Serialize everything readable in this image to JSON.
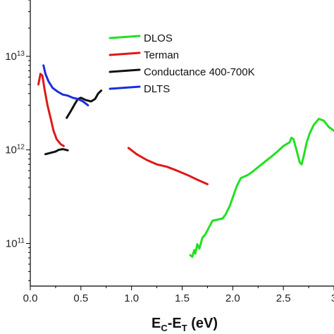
{
  "chart_data": {
    "type": "line",
    "title": "",
    "xlabel": "E_C-E_T (eV)",
    "xlabel_parts": {
      "e1": "E",
      "s1": "C",
      "mid": "-E",
      "s2": "T",
      "tail": " (eV)"
    },
    "ylabel": "",
    "xlim": [
      0,
      3.0
    ],
    "ylog": true,
    "ylim": [
      35000000000.0,
      40000000000000.0
    ],
    "x_ticks": [
      {
        "value": 0.0,
        "label": "0.0"
      },
      {
        "value": 0.5,
        "label": "0.5"
      },
      {
        "value": 1.0,
        "label": "1.0"
      },
      {
        "value": 1.5,
        "label": "1.5"
      },
      {
        "value": 2.0,
        "label": "2.0"
      },
      {
        "value": 2.5,
        "label": "2.5"
      },
      {
        "value": 3.0,
        "label": "3"
      }
    ],
    "y_ticks": [
      {
        "value": 10000000000000.0,
        "base": "10",
        "exp": "13"
      },
      {
        "value": 1000000000000.0,
        "base": "10",
        "exp": "12"
      },
      {
        "value": 100000000000.0,
        "base": "10",
        "exp": "11"
      }
    ],
    "legend_position": "top-center",
    "series": [
      {
        "name": "DLOS",
        "color": "#22e022",
        "segments": [
          [
            [
              1.58,
              75000000000.0
            ],
            [
              1.6,
              72000000000.0
            ],
            [
              1.62,
              85000000000.0
            ],
            [
              1.63,
              78000000000.0
            ],
            [
              1.65,
              98000000000.0
            ],
            [
              1.67,
              88000000000.0
            ],
            [
              1.7,
              115000000000.0
            ],
            [
              1.73,
              125000000000.0
            ],
            [
              1.76,
              145000000000.0
            ],
            [
              1.8,
              175000000000.0
            ],
            [
              1.85,
              180000000000.0
            ],
            [
              1.9,
              185000000000.0
            ],
            [
              1.93,
              205000000000.0
            ],
            [
              1.97,
              250000000000.0
            ],
            [
              2.0,
              310000000000.0
            ],
            [
              2.04,
              410000000000.0
            ],
            [
              2.08,
              500000000000.0
            ],
            [
              2.15,
              540000000000.0
            ],
            [
              2.2,
              590000000000.0
            ],
            [
              2.3,
              720000000000.0
            ],
            [
              2.4,
              880000000000.0
            ],
            [
              2.45,
              980000000000.0
            ],
            [
              2.5,
              1100000000000.0
            ],
            [
              2.53,
              1150000000000.0
            ],
            [
              2.56,
              1200000000000.0
            ],
            [
              2.58,
              1350000000000.0
            ],
            [
              2.6,
              1300000000000.0
            ],
            [
              2.63,
              1000000000000.0
            ],
            [
              2.66,
              740000000000.0
            ],
            [
              2.68,
              700000000000.0
            ],
            [
              2.7,
              850000000000.0
            ],
            [
              2.73,
              1200000000000.0
            ],
            [
              2.76,
              1500000000000.0
            ],
            [
              2.8,
              1850000000000.0
            ],
            [
              2.85,
              2150000000000.0
            ],
            [
              2.9,
              2050000000000.0
            ],
            [
              2.95,
              1750000000000.0
            ],
            [
              3.0,
              1600000000000.0
            ]
          ]
        ]
      },
      {
        "name": "Terman",
        "color": "#e01818",
        "segments": [
          [
            [
              0.08,
              5000000000000.0
            ],
            [
              0.1,
              6500000000000.0
            ],
            [
              0.12,
              6200000000000.0
            ],
            [
              0.14,
              4500000000000.0
            ],
            [
              0.17,
              3000000000000.0
            ],
            [
              0.2,
              2200000000000.0
            ],
            [
              0.23,
              1600000000000.0
            ],
            [
              0.26,
              1300000000000.0
            ],
            [
              0.3,
              1150000000000.0
            ],
            [
              0.33,
              1100000000000.0
            ]
          ],
          [
            [
              0.97,
              1050000000000.0
            ],
            [
              1.05,
              900000000000.0
            ],
            [
              1.15,
              780000000000.0
            ],
            [
              1.25,
              700000000000.0
            ],
            [
              1.35,
              660000000000.0
            ],
            [
              1.45,
              600000000000.0
            ],
            [
              1.55,
              540000000000.0
            ],
            [
              1.65,
              480000000000.0
            ],
            [
              1.75,
              430000000000.0
            ]
          ]
        ]
      },
      {
        "name": "Conductance  400-700K",
        "color": "#111111",
        "segments": [
          [
            [
              0.15,
              900000000000.0
            ],
            [
              0.2,
              930000000000.0
            ],
            [
              0.25,
              960000000000.0
            ],
            [
              0.28,
              1000000000000.0
            ],
            [
              0.32,
              1020000000000.0
            ],
            [
              0.37,
              990000000000.0
            ]
          ],
          [
            [
              0.36,
              2200000000000.0
            ],
            [
              0.4,
              2600000000000.0
            ],
            [
              0.44,
              3100000000000.0
            ],
            [
              0.47,
              3500000000000.0
            ],
            [
              0.5,
              3600000000000.0
            ],
            [
              0.55,
              3400000000000.0
            ],
            [
              0.6,
              3300000000000.0
            ],
            [
              0.64,
              3500000000000.0
            ],
            [
              0.67,
              4000000000000.0
            ],
            [
              0.7,
              4300000000000.0
            ]
          ]
        ]
      },
      {
        "name": "DLTS",
        "color": "#1a2ee0",
        "segments": [
          [
            [
              0.13,
              8000000000000.0
            ],
            [
              0.15,
              6500000000000.0
            ],
            [
              0.18,
              5400000000000.0
            ],
            [
              0.22,
              4600000000000.0
            ],
            [
              0.27,
              4200000000000.0
            ],
            [
              0.32,
              3900000000000.0
            ],
            [
              0.37,
              3800000000000.0
            ],
            [
              0.42,
              3600000000000.0
            ],
            [
              0.47,
              3500000000000.0
            ],
            [
              0.52,
              3300000000000.0
            ],
            [
              0.57,
              3000000000000.0
            ]
          ]
        ]
      }
    ]
  }
}
